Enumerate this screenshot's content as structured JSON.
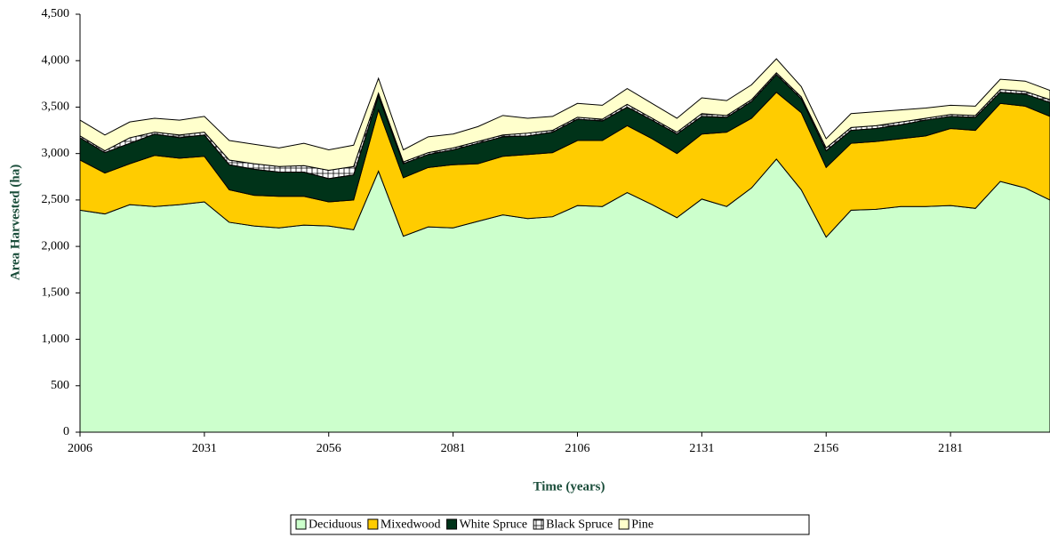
{
  "chart_data": {
    "type": "stacked_area",
    "x_label": "Time (years)",
    "y_label": "Area Harvested (ha)",
    "x": [
      2006,
      2011,
      2016,
      2021,
      2026,
      2031,
      2036,
      2041,
      2046,
      2051,
      2056,
      2061,
      2066,
      2071,
      2076,
      2081,
      2086,
      2091,
      2096,
      2101,
      2106,
      2111,
      2116,
      2121,
      2126,
      2131,
      2136,
      2141,
      2146,
      2151,
      2156,
      2161,
      2166,
      2171,
      2176,
      2181,
      2186,
      2191,
      2196,
      2201
    ],
    "xlim": [
      2006,
      2201
    ],
    "xticks": [
      2006,
      2031,
      2056,
      2081,
      2106,
      2131,
      2156,
      2181
    ],
    "ylim": [
      0,
      4500
    ],
    "yticks": [
      0,
      500,
      {
        "value": 1000,
        "label": "1,000"
      },
      {
        "value": 1500,
        "label": "1,500"
      },
      {
        "value": 2000,
        "label": "2,000"
      },
      {
        "value": 2500,
        "label": "2,500"
      },
      {
        "value": 3000,
        "label": "3,000"
      },
      {
        "value": 3500,
        "label": "3,500"
      },
      {
        "value": 4000,
        "label": "4,000"
      },
      {
        "value": 4500,
        "label": "4,500"
      }
    ],
    "legend": "bottom",
    "series": [
      {
        "name": "Deciduous",
        "color": "#ccffcc",
        "values": [
          2390,
          2350,
          2450,
          2430,
          2450,
          2480,
          2260,
          2220,
          2200,
          2230,
          2220,
          2180,
          2810,
          2110,
          2210,
          2200,
          2270,
          2340,
          2300,
          2320,
          2440,
          2430,
          2580,
          2450,
          2310,
          2510,
          2430,
          2630,
          2940,
          2610,
          2100,
          2390,
          2400,
          2430,
          2430,
          2440,
          2410,
          2700,
          2630,
          2500
        ]
      },
      {
        "name": "Mixedwood",
        "color": "#ffcc00",
        "values": [
          540,
          440,
          440,
          550,
          500,
          490,
          350,
          330,
          340,
          310,
          260,
          320,
          660,
          630,
          640,
          680,
          620,
          630,
          690,
          690,
          700,
          710,
          720,
          710,
          690,
          700,
          800,
          750,
          720,
          830,
          750,
          720,
          730,
          730,
          760,
          830,
          840,
          840,
          880,
          900
        ]
      },
      {
        "name": "White Spruce",
        "color": "#003319",
        "values": [
          240,
          220,
          220,
          230,
          220,
          230,
          270,
          280,
          260,
          260,
          250,
          270,
          150,
          150,
          140,
          160,
          220,
          210,
          200,
          220,
          230,
          210,
          200,
          200,
          210,
          190,
          160,
          180,
          190,
          150,
          180,
          140,
          140,
          150,
          170,
          130,
          140,
          120,
          130,
          150
        ]
      },
      {
        "name": "Black Spruce",
        "color": "#ffffff",
        "values": [
          20,
          20,
          60,
          20,
          30,
          30,
          50,
          60,
          60,
          70,
          90,
          90,
          30,
          20,
          20,
          20,
          20,
          20,
          30,
          20,
          20,
          20,
          30,
          20,
          20,
          30,
          20,
          20,
          20,
          20,
          30,
          30,
          30,
          30,
          20,
          20,
          20,
          30,
          30,
          30
        ]
      },
      {
        "name": "Pine",
        "color": "#ffffcc",
        "values": [
          170,
          170,
          170,
          150,
          160,
          170,
          210,
          210,
          200,
          240,
          220,
          230,
          160,
          130,
          170,
          150,
          160,
          210,
          160,
          150,
          150,
          150,
          170,
          160,
          150,
          170,
          160,
          160,
          150,
          110,
          100,
          150,
          150,
          130,
          110,
          100,
          100,
          110,
          110,
          100
        ]
      }
    ]
  }
}
